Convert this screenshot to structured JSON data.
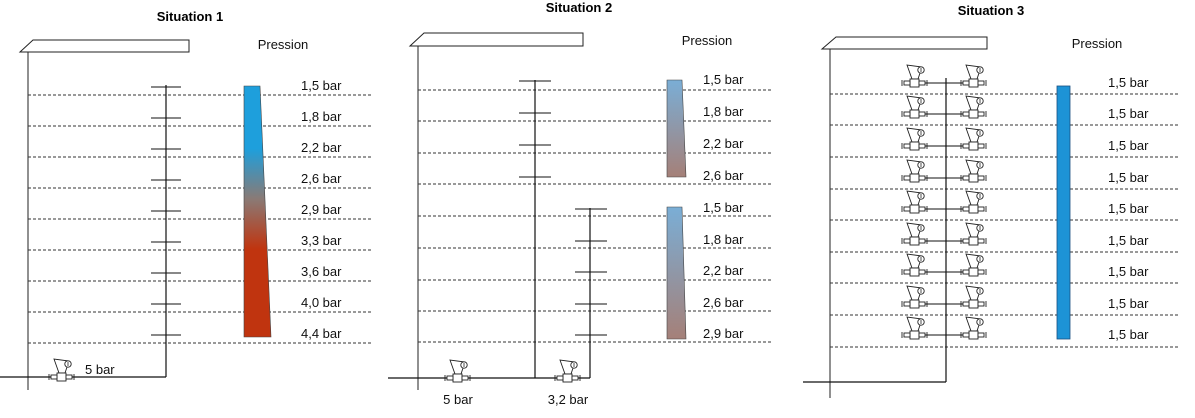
{
  "situations": [
    {
      "title": "Situation 1",
      "pression_label": "Pression",
      "pressures": [
        "1,5 bar",
        "1,8 bar",
        "2,2 bar",
        "2,6 bar",
        "2,9 bar",
        "3,3 bar",
        "3,6 bar",
        "4,0 bar",
        "4,4 bar"
      ],
      "supply_labels": [
        "5 bar"
      ]
    },
    {
      "title": "Situation 2",
      "pression_label": "Pression",
      "pressures": [
        "1,5 bar",
        "1,8 bar",
        "2,2 bar",
        "2,6 bar",
        "1,5 bar",
        "1,8 bar",
        "2,2 bar",
        "2,6 bar",
        "2,9 bar"
      ],
      "supply_labels": [
        "5 bar",
        "3,2 bar"
      ]
    },
    {
      "title": "Situation 3",
      "pression_label": "Pression",
      "pressures": [
        "1,5 bar",
        "1,5 bar",
        "1,5 bar",
        "1,5 bar",
        "1,5 bar",
        "1,5 bar",
        "1,5 bar",
        "1,5 bar",
        "1,5 bar"
      ],
      "supply_labels": []
    }
  ],
  "colors": {
    "low_pressure": "#1e9fdc",
    "mid_pressure": "#8a7a75",
    "high_pressure": "#c0340f",
    "s2_top": "#7aaed6",
    "s2_bottom": "#a58078",
    "uniform": "#1d93d6"
  }
}
